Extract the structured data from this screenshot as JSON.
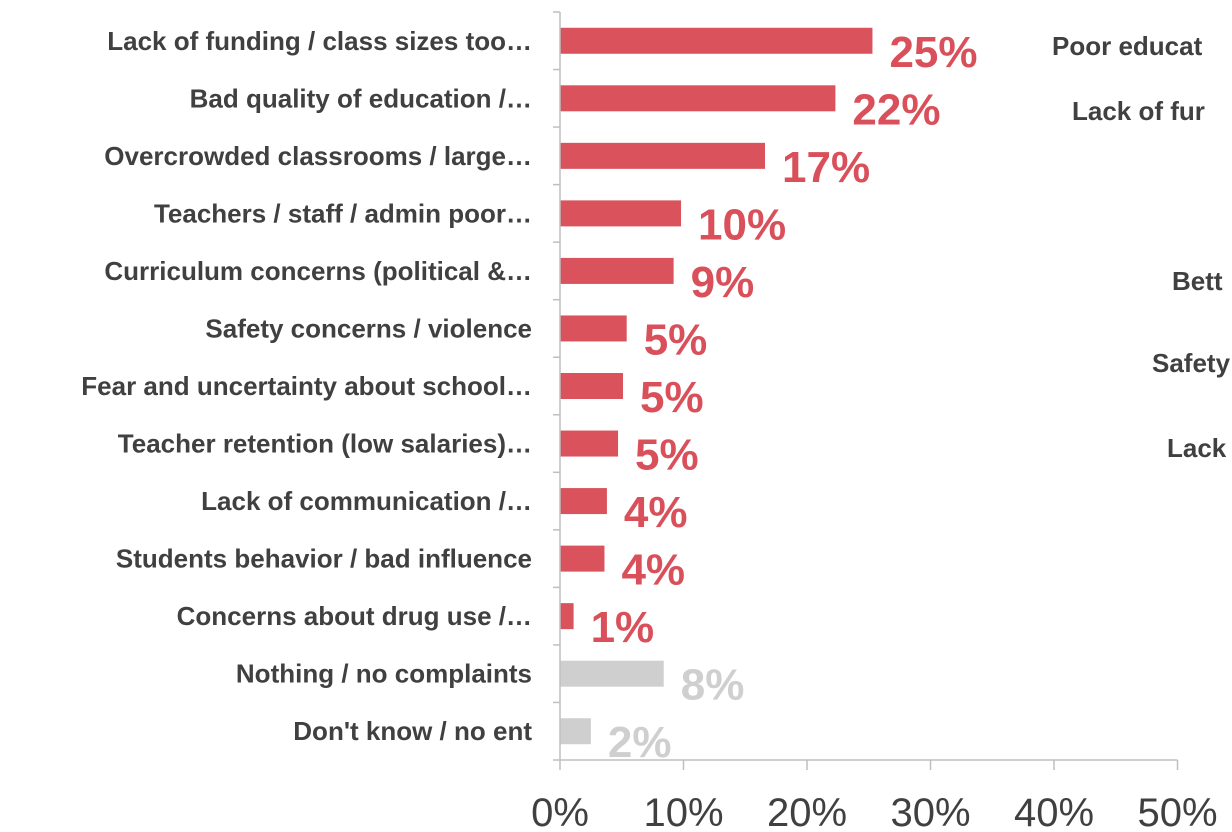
{
  "chart_data": {
    "type": "bar",
    "orientation": "horizontal",
    "categories": [
      "Lack of funding / class sizes too…",
      "Bad quality of education /…",
      "Overcrowded classrooms / large…",
      "Teachers / staff / admin poor…",
      "Curriculum concerns (political &…",
      "Safety concerns / violence",
      "Fear and uncertainty about school…",
      "Teacher retention (low salaries)…",
      "Lack of communication /…",
      "Students behavior / bad influence",
      "Concerns about drug use /…",
      "Nothing / no complaints",
      "Don't know / no ent"
    ],
    "values": [
      25,
      22,
      17,
      10,
      9,
      5,
      5,
      5,
      4,
      4,
      1,
      8,
      2
    ],
    "value_labels": [
      "25%",
      "22%",
      "17%",
      "10%",
      "9%",
      "5%",
      "5%",
      "5%",
      "4%",
      "4%",
      "1%",
      "8%",
      "2%"
    ],
    "bar_values": [
      25.3,
      22.3,
      16.6,
      9.8,
      9.2,
      5.4,
      5.1,
      4.7,
      3.8,
      3.6,
      1.1,
      8.4,
      2.5
    ],
    "xlim": [
      0,
      50
    ],
    "x_ticks": [
      "0%",
      "10%",
      "20%",
      "30%",
      "40%",
      "50%"
    ],
    "colors": {
      "primary": "#d9525c",
      "secondary": "#d0cfd0",
      "secondary_label": "#cfcfcf",
      "primary_label": "#d9505a"
    },
    "secondary_from_index": 11,
    "grid": false
  },
  "right_panel": {
    "labels": [
      "Poor educat",
      "Lack of fur",
      "Bett",
      "Safety",
      "Lack"
    ]
  }
}
